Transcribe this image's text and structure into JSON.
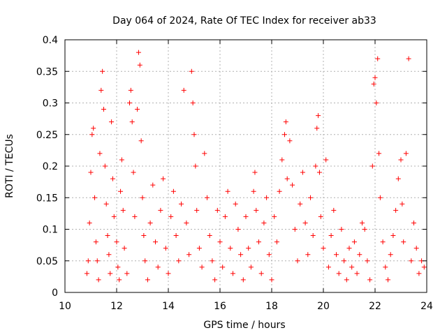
{
  "chart_data": {
    "type": "scatter",
    "title": "Day 064 of 2024, Rate Of TEC Index for receiver ab33",
    "xlabel": "GPS time / hours",
    "ylabel": "ROTI / TECUs",
    "xlim": [
      10,
      24
    ],
    "ylim": [
      0,
      0.4
    ],
    "x_ticks": [
      10,
      12,
      14,
      16,
      18,
      20,
      22,
      24
    ],
    "x_tick_labels": [
      "10",
      "12",
      "14",
      "16",
      "18",
      "20",
      "22",
      "24"
    ],
    "y_ticks": [
      0,
      0.05,
      0.1,
      0.15,
      0.2,
      0.25,
      0.3,
      0.35,
      0.4
    ],
    "y_tick_labels": [
      "0",
      "0.05",
      "0.1",
      "0.15",
      "0.2",
      "0.25",
      "0.3",
      "0.35",
      "0.4"
    ],
    "grid": true,
    "marker": "+",
    "color": "#ff0000",
    "series": [
      {
        "points": [
          [
            10.85,
            0.03
          ],
          [
            10.9,
            0.05
          ],
          [
            10.95,
            0.11
          ],
          [
            11.0,
            0.19
          ],
          [
            11.05,
            0.25
          ],
          [
            11.1,
            0.26
          ],
          [
            11.15,
            0.15
          ],
          [
            11.2,
            0.08
          ],
          [
            11.25,
            0.05
          ],
          [
            11.3,
            0.02
          ],
          [
            11.35,
            0.22
          ],
          [
            11.4,
            0.32
          ],
          [
            11.45,
            0.35
          ],
          [
            11.5,
            0.29
          ],
          [
            11.55,
            0.2
          ],
          [
            11.6,
            0.14
          ],
          [
            11.65,
            0.09
          ],
          [
            11.7,
            0.06
          ],
          [
            11.75,
            0.03
          ],
          [
            11.8,
            0.27
          ],
          [
            11.85,
            0.18
          ],
          [
            11.9,
            0.12
          ],
          [
            12.0,
            0.08
          ],
          [
            12.05,
            0.04
          ],
          [
            12.1,
            0.02
          ],
          [
            12.15,
            0.16
          ],
          [
            12.2,
            0.21
          ],
          [
            12.25,
            0.13
          ],
          [
            12.3,
            0.07
          ],
          [
            12.4,
            0.03
          ],
          [
            12.5,
            0.3
          ],
          [
            12.55,
            0.32
          ],
          [
            12.6,
            0.27
          ],
          [
            12.65,
            0.19
          ],
          [
            12.7,
            0.12
          ],
          [
            12.8,
            0.29
          ],
          [
            12.85,
            0.38
          ],
          [
            12.9,
            0.36
          ],
          [
            12.95,
            0.24
          ],
          [
            13.0,
            0.15
          ],
          [
            13.05,
            0.09
          ],
          [
            13.1,
            0.05
          ],
          [
            13.2,
            0.02
          ],
          [
            13.3,
            0.11
          ],
          [
            13.4,
            0.17
          ],
          [
            13.5,
            0.08
          ],
          [
            13.6,
            0.04
          ],
          [
            13.7,
            0.13
          ],
          [
            13.8,
            0.18
          ],
          [
            13.9,
            0.07
          ],
          [
            14.0,
            0.03
          ],
          [
            14.1,
            0.12
          ],
          [
            14.2,
            0.16
          ],
          [
            14.3,
            0.09
          ],
          [
            14.4,
            0.05
          ],
          [
            14.5,
            0.14
          ],
          [
            14.6,
            0.32
          ],
          [
            14.7,
            0.11
          ],
          [
            14.8,
            0.06
          ],
          [
            14.9,
            0.35
          ],
          [
            14.95,
            0.3
          ],
          [
            15.0,
            0.25
          ],
          [
            15.05,
            0.2
          ],
          [
            15.1,
            0.13
          ],
          [
            15.2,
            0.07
          ],
          [
            15.3,
            0.04
          ],
          [
            15.4,
            0.22
          ],
          [
            15.5,
            0.15
          ],
          [
            15.6,
            0.09
          ],
          [
            15.7,
            0.05
          ],
          [
            15.8,
            0.02
          ],
          [
            15.9,
            0.13
          ],
          [
            16.0,
            0.08
          ],
          [
            16.1,
            0.04
          ],
          [
            16.2,
            0.12
          ],
          [
            16.3,
            0.16
          ],
          [
            16.4,
            0.07
          ],
          [
            16.5,
            0.03
          ],
          [
            16.6,
            0.14
          ],
          [
            16.7,
            0.1
          ],
          [
            16.8,
            0.06
          ],
          [
            16.9,
            0.02
          ],
          [
            17.0,
            0.12
          ],
          [
            17.1,
            0.07
          ],
          [
            17.2,
            0.04
          ],
          [
            17.3,
            0.16
          ],
          [
            17.35,
            0.19
          ],
          [
            17.4,
            0.13
          ],
          [
            17.5,
            0.08
          ],
          [
            17.6,
            0.03
          ],
          [
            17.7,
            0.11
          ],
          [
            17.8,
            0.15
          ],
          [
            17.9,
            0.06
          ],
          [
            18.0,
            0.02
          ],
          [
            18.1,
            0.12
          ],
          [
            18.2,
            0.08
          ],
          [
            18.3,
            0.16
          ],
          [
            18.4,
            0.21
          ],
          [
            18.5,
            0.25
          ],
          [
            18.55,
            0.27
          ],
          [
            18.6,
            0.18
          ],
          [
            18.7,
            0.24
          ],
          [
            18.8,
            0.17
          ],
          [
            18.9,
            0.1
          ],
          [
            19.0,
            0.05
          ],
          [
            19.1,
            0.14
          ],
          [
            19.2,
            0.19
          ],
          [
            19.3,
            0.11
          ],
          [
            19.4,
            0.06
          ],
          [
            19.5,
            0.15
          ],
          [
            19.6,
            0.09
          ],
          [
            19.7,
            0.2
          ],
          [
            19.75,
            0.26
          ],
          [
            19.8,
            0.28
          ],
          [
            19.85,
            0.19
          ],
          [
            19.9,
            0.12
          ],
          [
            20.0,
            0.07
          ],
          [
            20.1,
            0.21
          ],
          [
            20.2,
            0.04
          ],
          [
            20.3,
            0.09
          ],
          [
            20.4,
            0.13
          ],
          [
            20.5,
            0.06
          ],
          [
            20.6,
            0.03
          ],
          [
            20.7,
            0.1
          ],
          [
            20.8,
            0.05
          ],
          [
            20.9,
            0.02
          ],
          [
            21.0,
            0.07
          ],
          [
            21.1,
            0.04
          ],
          [
            21.2,
            0.08
          ],
          [
            21.3,
            0.03
          ],
          [
            21.4,
            0.06
          ],
          [
            21.5,
            0.11
          ],
          [
            21.6,
            0.1
          ],
          [
            21.7,
            0.05
          ],
          [
            21.8,
            0.02
          ],
          [
            21.9,
            0.2
          ],
          [
            21.95,
            0.33
          ],
          [
            22.0,
            0.34
          ],
          [
            22.05,
            0.3
          ],
          [
            22.1,
            0.37
          ],
          [
            22.15,
            0.22
          ],
          [
            22.2,
            0.15
          ],
          [
            22.3,
            0.08
          ],
          [
            22.4,
            0.04
          ],
          [
            22.5,
            0.02
          ],
          [
            22.6,
            0.06
          ],
          [
            22.7,
            0.09
          ],
          [
            22.8,
            0.13
          ],
          [
            22.9,
            0.18
          ],
          [
            23.0,
            0.21
          ],
          [
            23.05,
            0.14
          ],
          [
            23.1,
            0.08
          ],
          [
            23.2,
            0.22
          ],
          [
            23.3,
            0.37
          ],
          [
            23.4,
            0.05
          ],
          [
            23.5,
            0.11
          ],
          [
            23.6,
            0.07
          ],
          [
            23.7,
            0.03
          ],
          [
            23.8,
            0.05
          ],
          [
            23.9,
            0.04
          ]
        ]
      }
    ]
  }
}
